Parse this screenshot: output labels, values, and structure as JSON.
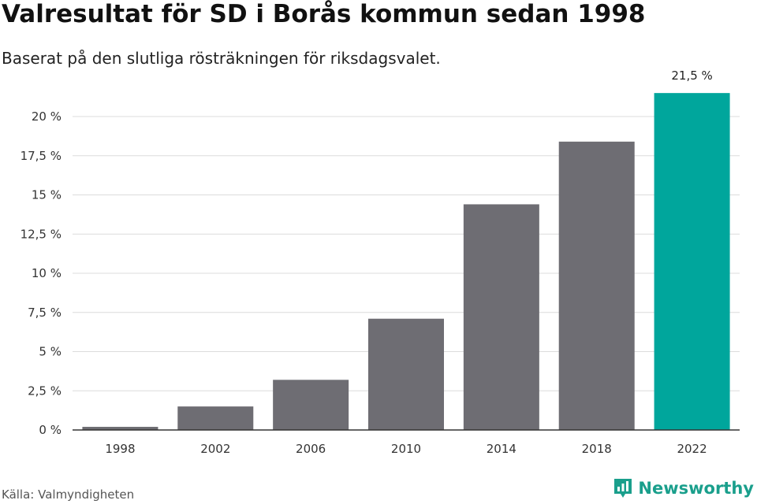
{
  "title": "Valresultat för SD i Borås kommun sedan 1998",
  "subtitle": "Baserat på den slutliga rösträkningen för riksdagsvalet.",
  "source": "Källa: Valmyndigheten",
  "brand": {
    "name": "Newsworthy",
    "icon": "newsworthy-logo-icon",
    "color": "#1a9f8c"
  },
  "colors": {
    "bar": "#6e6d73",
    "highlight": "#00a69c",
    "grid": "#dcdcdc",
    "axis": "#333333"
  },
  "chart_data": {
    "type": "bar",
    "title": "Valresultat för SD i Borås kommun sedan 1998",
    "xlabel": "",
    "ylabel": "",
    "categories": [
      "1998",
      "2002",
      "2006",
      "2010",
      "2014",
      "2018",
      "2022"
    ],
    "values": [
      0.2,
      1.5,
      3.2,
      7.1,
      14.4,
      18.4,
      21.5
    ],
    "ylim": [
      0,
      21.5
    ],
    "yticks": [
      0,
      2.5,
      5,
      7.5,
      10,
      12.5,
      15,
      17.5,
      20
    ],
    "ytick_labels": [
      "0 %",
      "2,5 %",
      "5 %",
      "7,5 %",
      "10 %",
      "12,5 %",
      "15 %",
      "17,5 %",
      "20 %"
    ],
    "highlight_index": 6,
    "data_labels": [
      {
        "index": 6,
        "text": "21,5 %"
      }
    ],
    "grid": true
  }
}
